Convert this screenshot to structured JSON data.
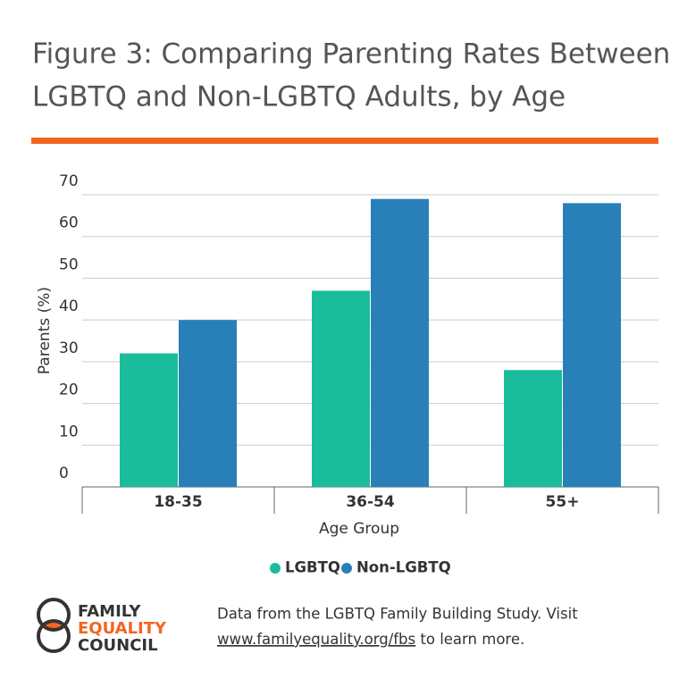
{
  "chart_data": {
    "type": "bar",
    "title": [
      "Figure 3: Comparing Parenting Rates Between",
      "LGBTQ and Non-LGBTQ Adults, by Age"
    ],
    "x_label": "Age Group",
    "y_label": "Parents (%)",
    "categories": [
      "18-35",
      "36-54",
      "55+"
    ],
    "series": [
      {
        "name": "LGBTQ",
        "color": "#1abc9c",
        "values": [
          32,
          47,
          28
        ]
      },
      {
        "name": "Non-LGBTQ",
        "color": "#2980b9",
        "values": [
          40,
          69,
          68
        ]
      }
    ],
    "ylim": [
      0,
      70
    ],
    "yticks": [
      0,
      10,
      20,
      30,
      40,
      50,
      60,
      70
    ],
    "grid": true,
    "legend": "bottom"
  },
  "logo": {
    "lines": [
      "FAMILY",
      "EQUALITY",
      "COUNCIL"
    ]
  },
  "footer": {
    "text": "Data from the LGBTQ Family Building Study. Visit",
    "link": "www.familyequality.org/fbs",
    "after_link": "to learn more."
  }
}
